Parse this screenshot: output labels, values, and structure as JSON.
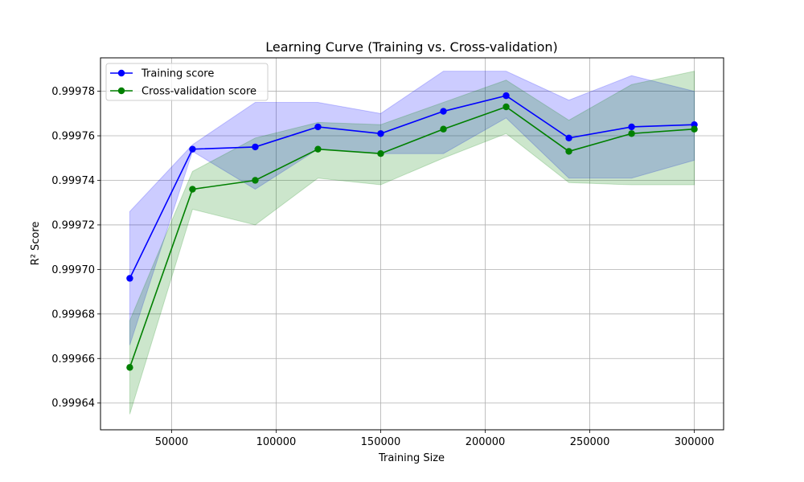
{
  "chart_data": {
    "type": "line",
    "title": "Learning Curve (Training vs. Cross-validation)",
    "xlabel": "Training Size",
    "ylabel": "R² Score",
    "xlim": [
      16000,
      314000
    ],
    "ylim": [
      0.999628,
      0.999795
    ],
    "grid": true,
    "legend_position": "upper left",
    "xticks": [
      50000,
      100000,
      150000,
      200000,
      250000,
      300000
    ],
    "xtick_labels": [
      "50000",
      "100000",
      "150000",
      "200000",
      "250000",
      "300000"
    ],
    "yticks": [
      0.99964,
      0.99966,
      0.99968,
      0.9997,
      0.99972,
      0.99974,
      0.99976,
      0.99978
    ],
    "ytick_labels": [
      "0.99964",
      "0.99966",
      "0.99968",
      "0.99970",
      "0.99972",
      "0.99974",
      "0.99976",
      "0.99978"
    ],
    "x": [
      30000,
      60000,
      90000,
      120000,
      150000,
      180000,
      210000,
      240000,
      270000,
      300000
    ],
    "series": [
      {
        "name": "Training score",
        "color": "#0000ff",
        "marker": "circle",
        "values": [
          0.999696,
          0.999754,
          0.999755,
          0.999764,
          0.999761,
          0.999771,
          0.999778,
          0.999759,
          0.999764,
          0.999765
        ],
        "band_upper": [
          0.999726,
          0.999756,
          0.999775,
          0.999775,
          0.99977,
          0.999789,
          0.999789,
          0.999776,
          0.999787,
          0.99978
        ],
        "band_lower": [
          0.999666,
          0.999753,
          0.999736,
          0.999754,
          0.999752,
          0.999752,
          0.999768,
          0.999741,
          0.999741,
          0.999749
        ],
        "band_color": "#0000ff",
        "band_opacity": 0.2
      },
      {
        "name": "Cross-validation score",
        "color": "#008000",
        "marker": "circle",
        "values": [
          0.999656,
          0.999736,
          0.99974,
          0.999754,
          0.999752,
          0.999763,
          0.999773,
          0.999753,
          0.999761,
          0.999763
        ],
        "band_upper": [
          0.999677,
          0.999744,
          0.999759,
          0.999766,
          0.999765,
          0.999775,
          0.999785,
          0.999767,
          0.999783,
          0.999789
        ],
        "band_lower": [
          0.999635,
          0.999727,
          0.99972,
          0.999741,
          0.999738,
          0.99975,
          0.999761,
          0.999739,
          0.999738,
          0.999738
        ],
        "band_color": "#008000",
        "band_opacity": 0.2
      }
    ]
  }
}
